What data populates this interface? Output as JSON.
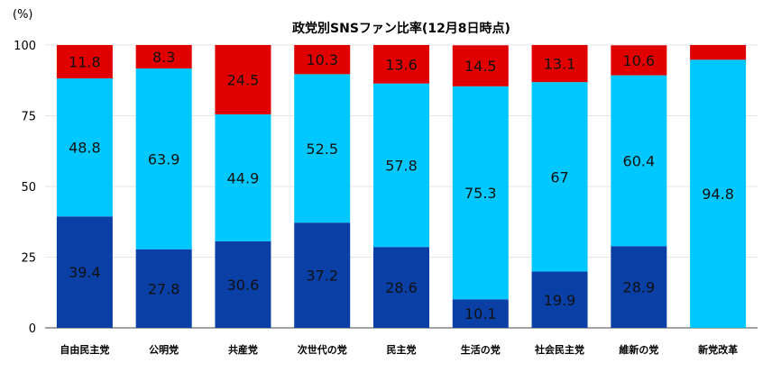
{
  "chart_data": {
    "type": "bar",
    "stacked": true,
    "title": "政党別SNSファン比率(12月8日時点)",
    "ylabel": "(%)",
    "ylim": [
      0,
      100
    ],
    "yticks": [
      "0",
      "25",
      "50",
      "75",
      "100"
    ],
    "grid": true,
    "categories": [
      "自由民主党",
      "公明党",
      "共産党",
      "次世代の党",
      "民主党",
      "生活の党",
      "社会民主党",
      "維新の党",
      "新党改革"
    ],
    "series": [
      {
        "color": "#0a3fa5",
        "values": [
          39.4,
          27.8,
          30.6,
          37.2,
          28.6,
          10.1,
          19.9,
          28.9,
          0
        ],
        "labels": [
          "39.4",
          "27.8",
          "30.6",
          "37.2",
          "28.6",
          "10.1",
          "19.9",
          "28.9",
          ""
        ]
      },
      {
        "color": "#00c8ff",
        "values": [
          48.8,
          63.9,
          44.9,
          52.5,
          57.8,
          75.3,
          67,
          60.4,
          94.8
        ],
        "labels": [
          "48.8",
          "63.9",
          "44.9",
          "52.5",
          "57.8",
          "75.3",
          "67",
          "60.4",
          "94.8"
        ]
      },
      {
        "color": "#e00000",
        "values": [
          11.8,
          8.3,
          24.5,
          10.3,
          13.6,
          14.5,
          13.1,
          10.6,
          5.2
        ],
        "labels": [
          "11.8",
          "8.3",
          "24.5",
          "10.3",
          "13.6",
          "14.5",
          "13.1",
          "10.6",
          ""
        ]
      }
    ]
  }
}
